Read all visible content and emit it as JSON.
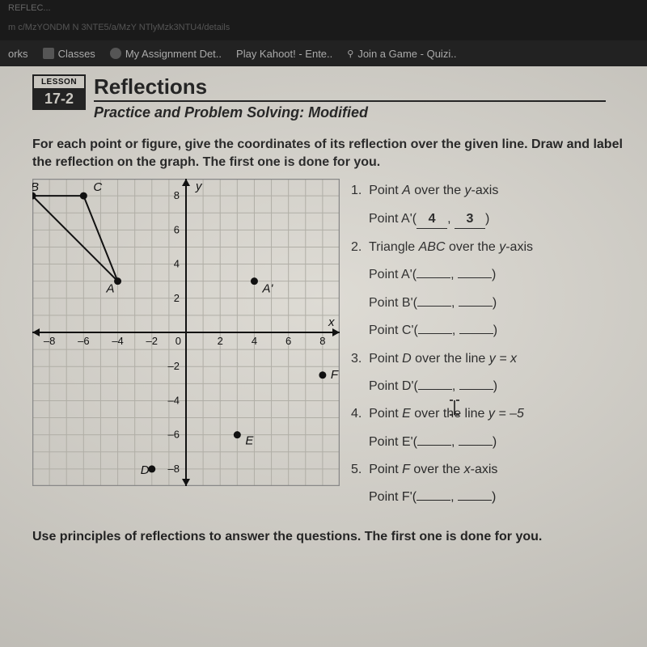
{
  "chrome": {
    "tab_hint": "REFLEC...",
    "url_hint": "m c/MzYONDM N 3NTE5/a/MzY NTlyMzk3NTU4/details",
    "bookmarks": [
      "orks",
      "Classes",
      "My Assignment Det..",
      "Play Kahoot! - Ente..",
      "Join a Game - Quizi.."
    ]
  },
  "lesson": {
    "label": "LESSON",
    "number": "17-2",
    "title": "Reflections",
    "subtitle": "Practice and Problem Solving: Modified"
  },
  "instructions": "For each point or figure, give the coordinates of its reflection over the given line. Draw and label the reflection on the graph. The first one is done for you.",
  "graph": {
    "xlim": [
      -9,
      9
    ],
    "ylim": [
      -9,
      9
    ],
    "xticks": [
      -8,
      -6,
      -4,
      -2,
      2,
      4,
      6,
      8
    ],
    "yticks": [
      -8,
      -6,
      -4,
      -2,
      2,
      4,
      6,
      8
    ],
    "y_label": "y",
    "x_label": "x",
    "grid_color": "#b0aea6",
    "axis_color": "#111",
    "points": {
      "A": {
        "x": -4,
        "y": 3,
        "label": "A"
      },
      "Ap": {
        "x": 4,
        "y": 3,
        "label": "A'"
      },
      "B": {
        "x": -9,
        "y": 8,
        "label": "B"
      },
      "C": {
        "x": -6,
        "y": 8,
        "label": "C"
      },
      "D": {
        "x": -2,
        "y": -8,
        "label": "D"
      },
      "E": {
        "x": 3,
        "y": -6,
        "label": "E"
      },
      "F": {
        "x": 8,
        "y": -2.5,
        "label": "F"
      }
    },
    "triangle": [
      "A",
      "B",
      "C"
    ]
  },
  "questions": {
    "q1": {
      "num": "1.",
      "text_a": "Point ",
      "pt": "A",
      "text_b": " over the ",
      "axis": "y",
      "text_c": "-axis",
      "ans_label": "Point A'(",
      "a1": "4",
      "sep": ", ",
      "a2": "3",
      "close": ")"
    },
    "q2": {
      "num": "2.",
      "text": "Triangle ",
      "tri": "ABC",
      "text2": " over the ",
      "axis": "y",
      "text3": "-axis",
      "pA": "Point A'(",
      "pB": "Point B'(",
      "pC": "Point C'("
    },
    "q3": {
      "num": "3.",
      "text": "Point ",
      "pt": "D",
      "text2": " over the line ",
      "eq": "y = x",
      "ans": "Point D'("
    },
    "q4": {
      "num": "4.",
      "text": "Point ",
      "pt": "E",
      "text2": " over the line ",
      "eq": "y = –5",
      "ans": "Point E'("
    },
    "q5": {
      "num": "5.",
      "text": "Point ",
      "pt": "F",
      "text2": " over the ",
      "axis": "x",
      "text3": "-axis",
      "ans": "Point F'("
    }
  },
  "footer": "Use principles of reflections to answer the questions. The first one is done for you."
}
